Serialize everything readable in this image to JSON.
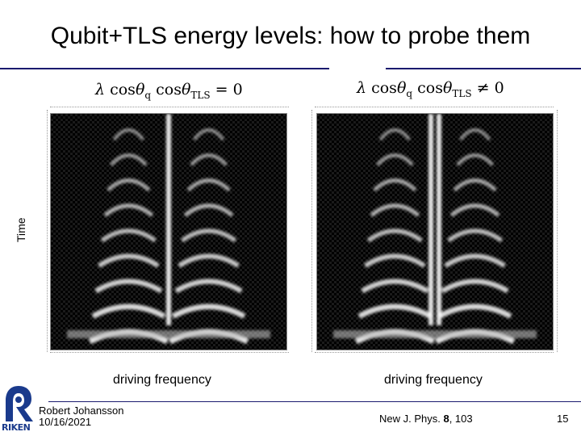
{
  "slide": {
    "title": "Qubit+TLS energy levels: how to probe them",
    "y_axis_label": "Time",
    "left_panel": {
      "formula_lambda": "λ",
      "formula_cos1": "cos",
      "formula_theta1": "θ",
      "formula_sub1": "q",
      "formula_cos2": "cos",
      "formula_theta2": "θ",
      "formula_sub2": "TLS",
      "formula_rel": "= 0",
      "xlabel": "driving frequency"
    },
    "right_panel": {
      "formula_lambda": "λ",
      "formula_cos1": "cos",
      "formula_theta1": "θ",
      "formula_sub1": "q",
      "formula_cos2": "cos",
      "formula_theta2": "θ",
      "formula_sub2": "TLS",
      "formula_rel": "≠ 0",
      "xlabel": "driving frequency"
    },
    "footer": {
      "author": "Robert Johansson",
      "date": "10/16/2021",
      "ref_prefix": "New J. Phys. ",
      "ref_volume": "8",
      "ref_suffix": ", 103",
      "page_number": "15",
      "logo_text": "RIKEN"
    },
    "colors": {
      "accent": "#1a1a6e",
      "logo": "#1a3a8c"
    }
  }
}
